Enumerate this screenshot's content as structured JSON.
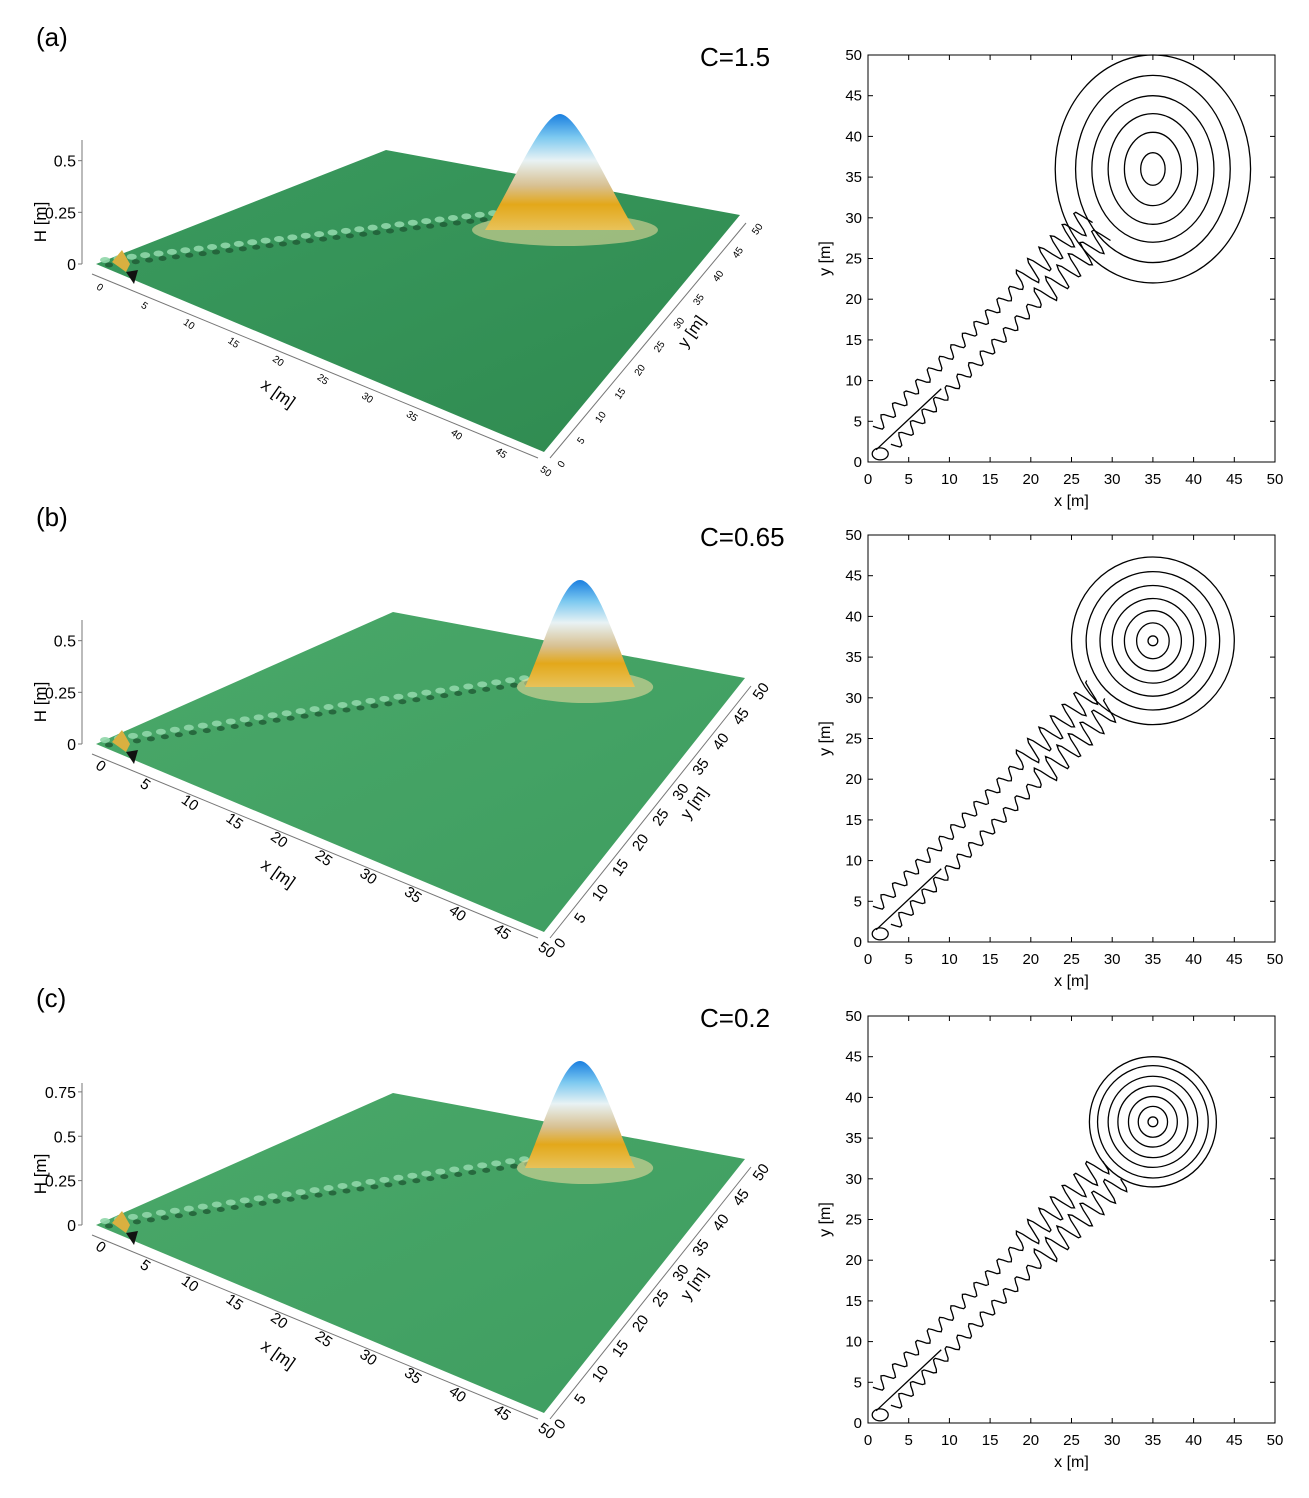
{
  "chart_data": [
    {
      "panel": "(a)",
      "c_label": "C=1.5",
      "surface": {
        "type": "surface3d",
        "zlabel": "H [m]",
        "xlabel": "x [m]",
        "ylabel": "y [m]",
        "z_ticks": [
          "0",
          "0.25",
          "0.5"
        ],
        "x_ticks": [
          "0",
          "5",
          "10",
          "15",
          "20",
          "25",
          "30",
          "35",
          "40",
          "45",
          "50"
        ],
        "y_ticks": [
          "0",
          "5",
          "10",
          "15",
          "20",
          "25",
          "30",
          "35",
          "40",
          "45",
          "50"
        ],
        "peak": {
          "x": 35,
          "y": 36
        }
      },
      "contour": {
        "type": "contour",
        "xlabel": "x [m]",
        "ylabel": "y [m]",
        "xlim": [
          0,
          50
        ],
        "ylim": [
          0,
          50
        ],
        "x_ticks": [
          "0",
          "5",
          "10",
          "15",
          "20",
          "25",
          "30",
          "35",
          "40",
          "45",
          "50"
        ],
        "y_ticks": [
          "0",
          "5",
          "10",
          "15",
          "20",
          "25",
          "30",
          "35",
          "40",
          "45",
          "50"
        ],
        "center": [
          35,
          36
        ]
      }
    },
    {
      "panel": "(b)",
      "c_label": "C=0.65",
      "surface": {
        "type": "surface3d",
        "zlabel": "H [m]",
        "xlabel": "x [m]",
        "ylabel": "y [m]",
        "z_ticks": [
          "0",
          "0.25",
          "0.5"
        ],
        "x_ticks": [
          "0",
          "5",
          "10",
          "15",
          "20",
          "25",
          "30",
          "35",
          "40",
          "45",
          "50"
        ],
        "y_ticks": [
          "0",
          "5",
          "10",
          "15",
          "20",
          "25",
          "30",
          "35",
          "40",
          "45",
          "50"
        ],
        "peak": {
          "x": 35,
          "y": 37
        }
      },
      "contour": {
        "type": "contour",
        "xlabel": "x [m]",
        "ylabel": "y [m]",
        "xlim": [
          0,
          50
        ],
        "ylim": [
          0,
          50
        ],
        "x_ticks": [
          "0",
          "5",
          "10",
          "15",
          "20",
          "25",
          "30",
          "35",
          "40",
          "45",
          "50"
        ],
        "y_ticks": [
          "0",
          "5",
          "10",
          "15",
          "20",
          "25",
          "30",
          "35",
          "40",
          "45",
          "50"
        ],
        "center": [
          35,
          37
        ]
      }
    },
    {
      "panel": "(c)",
      "c_label": "C=0.2",
      "surface": {
        "type": "surface3d",
        "zlabel": "H [m]",
        "xlabel": "x [m]",
        "ylabel": "y [m]",
        "z_ticks": [
          "0",
          "0.25",
          "0.5",
          "0.75"
        ],
        "x_ticks": [
          "0",
          "5",
          "10",
          "15",
          "20",
          "25",
          "30",
          "35",
          "40",
          "45",
          "50"
        ],
        "y_ticks": [
          "0",
          "5",
          "10",
          "15",
          "20",
          "25",
          "30",
          "35",
          "40",
          "45",
          "50"
        ],
        "peak": {
          "x": 35,
          "y": 37
        }
      },
      "contour": {
        "type": "contour",
        "xlabel": "x [m]",
        "ylabel": "y [m]",
        "xlim": [
          0,
          50
        ],
        "ylim": [
          0,
          50
        ],
        "x_ticks": [
          "0",
          "5",
          "10",
          "15",
          "20",
          "25",
          "30",
          "35",
          "40",
          "45",
          "50"
        ],
        "y_ticks": [
          "0",
          "5",
          "10",
          "15",
          "20",
          "25",
          "30",
          "35",
          "40",
          "45",
          "50"
        ],
        "center": [
          35,
          37
        ]
      }
    }
  ]
}
